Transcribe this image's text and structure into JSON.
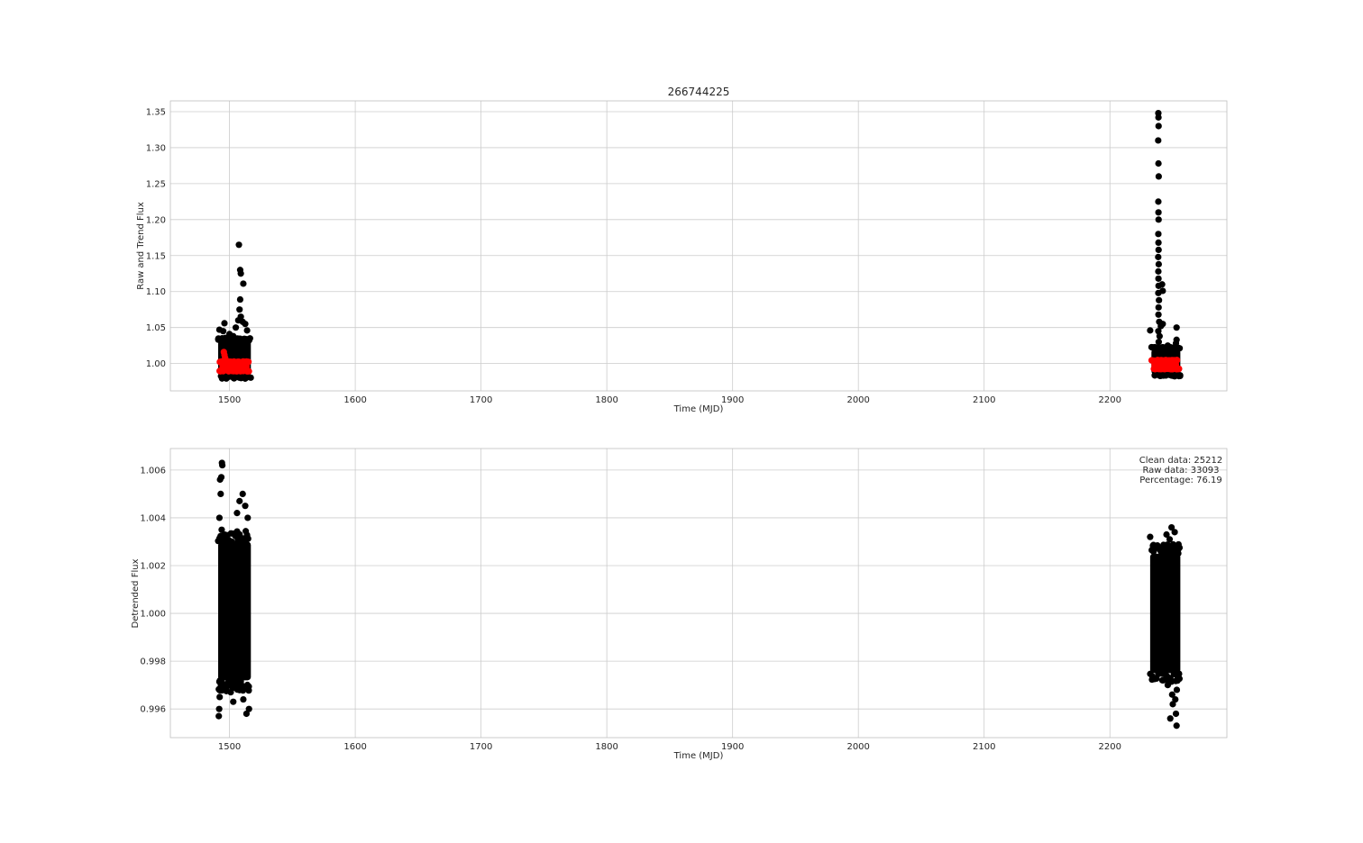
{
  "chart_data": [
    {
      "type": "scatter",
      "title": "266744225",
      "xlabel": "Time (MJD)",
      "ylabel": "Raw and Trend Flux",
      "xlim": [
        1453,
        2293
      ],
      "ylim": [
        0.962,
        1.365
      ],
      "xticks": [
        1500,
        1600,
        1700,
        1800,
        1900,
        2000,
        2100,
        2200
      ],
      "yticks": [
        1.0,
        1.05,
        1.1,
        1.15,
        1.2,
        1.25,
        1.3,
        1.35
      ],
      "ytick_labels": [
        "1.00",
        "1.05",
        "1.10",
        "1.15",
        "1.20",
        "1.25",
        "1.30",
        "1.35"
      ],
      "grid": true,
      "series": [
        {
          "color": "#000000",
          "segments": [
            {
              "x_range": [
                1491,
                1517
              ],
              "y_range": [
                0.983,
                1.032
              ]
            },
            {
              "x_range": [
                2233,
                2256
              ],
              "y_range": [
                0.985,
                1.02
              ]
            }
          ],
          "points": [
            {
              "x": 1507.5,
              "y": 1.165
            },
            {
              "x": 1508.5,
              "y": 1.13
            },
            {
              "x": 1509.0,
              "y": 1.125
            },
            {
              "x": 1511.0,
              "y": 1.111
            },
            {
              "x": 1508.5,
              "y": 1.089
            },
            {
              "x": 1508.0,
              "y": 1.075
            },
            {
              "x": 1509.0,
              "y": 1.065
            },
            {
              "x": 1507.0,
              "y": 1.06
            },
            {
              "x": 1510.5,
              "y": 1.058
            },
            {
              "x": 1496.0,
              "y": 1.056
            },
            {
              "x": 1492.0,
              "y": 1.047
            },
            {
              "x": 1495.0,
              "y": 1.045
            },
            {
              "x": 1505.0,
              "y": 1.05
            },
            {
              "x": 1512.5,
              "y": 1.055
            },
            {
              "x": 1500.0,
              "y": 1.041
            },
            {
              "x": 1514.0,
              "y": 1.046
            },
            {
              "x": 1503.0,
              "y": 1.038
            },
            {
              "x": 2238.5,
              "y": 1.348
            },
            {
              "x": 2238.6,
              "y": 1.342
            },
            {
              "x": 2238.7,
              "y": 1.33
            },
            {
              "x": 2238.4,
              "y": 1.31
            },
            {
              "x": 2238.6,
              "y": 1.278
            },
            {
              "x": 2238.8,
              "y": 1.26
            },
            {
              "x": 2238.5,
              "y": 1.225
            },
            {
              "x": 2238.6,
              "y": 1.21
            },
            {
              "x": 2238.7,
              "y": 1.2
            },
            {
              "x": 2238.5,
              "y": 1.18
            },
            {
              "x": 2238.6,
              "y": 1.168
            },
            {
              "x": 2238.7,
              "y": 1.158
            },
            {
              "x": 2238.4,
              "y": 1.148
            },
            {
              "x": 2238.8,
              "y": 1.138
            },
            {
              "x": 2238.5,
              "y": 1.128
            },
            {
              "x": 2238.6,
              "y": 1.118
            },
            {
              "x": 2238.7,
              "y": 1.108
            },
            {
              "x": 2241.5,
              "y": 1.11
            },
            {
              "x": 2242.0,
              "y": 1.101
            },
            {
              "x": 2238.5,
              "y": 1.098
            },
            {
              "x": 2239.0,
              "y": 1.088
            },
            {
              "x": 2238.7,
              "y": 1.078
            },
            {
              "x": 2238.6,
              "y": 1.068
            },
            {
              "x": 2239.2,
              "y": 1.058
            },
            {
              "x": 2240.5,
              "y": 1.052
            },
            {
              "x": 2242.0,
              "y": 1.055
            },
            {
              "x": 2232.0,
              "y": 1.046
            },
            {
              "x": 2253.0,
              "y": 1.05
            },
            {
              "x": 2238.5,
              "y": 1.045
            },
            {
              "x": 2239.5,
              "y": 1.038
            },
            {
              "x": 2253.0,
              "y": 1.033
            },
            {
              "x": 2238.8,
              "y": 1.03
            },
            {
              "x": 2246.0,
              "y": 1.025
            },
            {
              "x": 2252.5,
              "y": 1.028
            }
          ]
        },
        {
          "color": "#ff0000",
          "segments": [
            {
              "x_range": [
                1492,
                1516
              ],
              "y_range": [
                0.99,
                1.002
              ]
            },
            {
              "x_range": [
                2233,
                2255
              ],
              "y_range": [
                0.993,
                1.004
              ]
            }
          ],
          "points": [
            {
              "x": 1495.5,
              "y": 1.016
            },
            {
              "x": 1496.0,
              "y": 1.012
            },
            {
              "x": 1496.5,
              "y": 1.008
            },
            {
              "x": 1497.0,
              "y": 1.005
            },
            {
              "x": 1494.8,
              "y": 1.002
            }
          ]
        }
      ]
    },
    {
      "type": "scatter",
      "title": "",
      "xlabel": "Time (MJD)",
      "ylabel": "Detrended Flux",
      "xlim": [
        1453,
        2293
      ],
      "ylim": [
        0.9948,
        1.0069
      ],
      "xticks": [
        1500,
        1600,
        1700,
        1800,
        1900,
        2000,
        2100,
        2200
      ],
      "yticks": [
        0.996,
        0.998,
        1.0,
        1.002,
        1.004,
        1.006
      ],
      "ytick_labels": [
        "0.996",
        "0.998",
        "1.000",
        "1.002",
        "1.004",
        "1.006"
      ],
      "grid": true,
      "series": [
        {
          "color": "#000000",
          "segments": [
            {
              "x_range": [
                1491,
                1517
              ],
              "y_range": [
                0.9972,
                1.003
              ]
            },
            {
              "x_range": [
                2232,
                2256
              ],
              "y_range": [
                0.9975,
                1.0025
              ]
            }
          ],
          "points": [
            {
              "x": 1494.0,
              "y": 1.0063
            },
            {
              "x": 1494.3,
              "y": 1.0062
            },
            {
              "x": 1493.5,
              "y": 1.0057
            },
            {
              "x": 1492.5,
              "y": 1.0056
            },
            {
              "x": 1493.0,
              "y": 1.005
            },
            {
              "x": 1492.0,
              "y": 1.004
            },
            {
              "x": 1493.8,
              "y": 1.0035
            },
            {
              "x": 1510.5,
              "y": 1.005
            },
            {
              "x": 1508.0,
              "y": 1.0047
            },
            {
              "x": 1512.5,
              "y": 1.0045
            },
            {
              "x": 1514.5,
              "y": 1.004
            },
            {
              "x": 1506.0,
              "y": 1.0042
            },
            {
              "x": 1502.0,
              "y": 1.003
            },
            {
              "x": 1491.5,
              "y": 0.9957
            },
            {
              "x": 1491.8,
              "y": 0.996
            },
            {
              "x": 1492.2,
              "y": 0.9965
            },
            {
              "x": 1503.0,
              "y": 0.9963
            },
            {
              "x": 1501.0,
              "y": 0.9967
            },
            {
              "x": 1511.0,
              "y": 0.9964
            },
            {
              "x": 1513.5,
              "y": 0.9958
            },
            {
              "x": 1515.5,
              "y": 0.996
            },
            {
              "x": 1499.0,
              "y": 0.997
            },
            {
              "x": 1508.0,
              "y": 0.9969
            },
            {
              "x": 1494.0,
              "y": 0.9968
            },
            {
              "x": 2232.0,
              "y": 1.0032
            },
            {
              "x": 2249.0,
              "y": 1.0036
            },
            {
              "x": 2251.5,
              "y": 1.0034
            },
            {
              "x": 2245.0,
              "y": 1.0033
            },
            {
              "x": 2247.5,
              "y": 1.0031
            },
            {
              "x": 2243.0,
              "y": 1.0028
            },
            {
              "x": 2253.0,
              "y": 0.9953
            },
            {
              "x": 2252.5,
              "y": 0.9958
            },
            {
              "x": 2248.0,
              "y": 0.9956
            },
            {
              "x": 2250.0,
              "y": 0.9962
            },
            {
              "x": 2249.5,
              "y": 0.9966
            },
            {
              "x": 2252.0,
              "y": 0.9964
            },
            {
              "x": 2246.0,
              "y": 0.997
            },
            {
              "x": 2242.5,
              "y": 0.9972
            },
            {
              "x": 2253.2,
              "y": 0.9968
            }
          ]
        }
      ],
      "annotation_lines": [
        "Clean data: 25212",
        "Raw data: 33093",
        "Percentage: 76.19"
      ]
    }
  ]
}
